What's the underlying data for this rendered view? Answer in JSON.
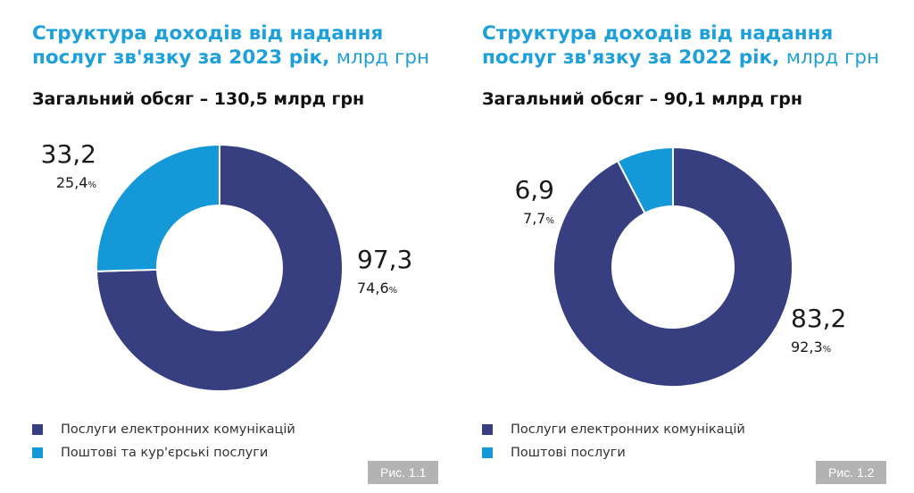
{
  "colors": {
    "title": "#1fa0d8",
    "electronic": "#373f81",
    "postal": "#1598d8",
    "fig_bg": "#b3b3b3"
  },
  "panels": [
    {
      "title_main": "Структура доходів від надання послуг зв'язку за 2023 рік,",
      "title_unit": "млрд грн",
      "total": "Загальний обсяг – 130,5 млрд грн",
      "legend": [
        {
          "label": "Послуги електронних комунікацій",
          "color": "#373f81"
        },
        {
          "label": "Поштові та кур'єрські послуги",
          "color": "#1598d8"
        }
      ],
      "fig": "Рис. 1.1"
    },
    {
      "title_main": "Структура доходів від надання послуг зв'язку за 2022 рік,",
      "title_unit": "млрд грн",
      "total": "Загальний обсяг – 90,1 млрд грн",
      "legend": [
        {
          "label": "Послуги електронних комунікацій",
          "color": "#373f81"
        },
        {
          "label": "Поштові послуги",
          "color": "#1598d8"
        }
      ],
      "fig": "Рис. 1.2"
    }
  ],
  "chart_data": [
    {
      "type": "pie",
      "title": "Структура доходів від надання послуг зв'язку за 2023 рік, млрд грн",
      "subtitle": "Загальний обсяг – 130,5 млрд грн",
      "slices": [
        {
          "name": "Послуги електронних комунікацій",
          "value": 97.3,
          "value_label": "97,3",
          "percent": 74.6,
          "percent_label": "74,6",
          "color": "#373f81"
        },
        {
          "name": "Поштові та кур'єрські послуги",
          "value": 33.2,
          "value_label": "33,2",
          "percent": 25.4,
          "percent_label": "25,4",
          "color": "#1598d8"
        }
      ],
      "legend_position": "bottom"
    },
    {
      "type": "pie",
      "title": "Структура доходів від надання послуг зв'язку за 2022 рік, млрд грн",
      "subtitle": "Загальний обсяг – 90,1 млрд грн",
      "slices": [
        {
          "name": "Послуги електронних комунікацій",
          "value": 83.2,
          "value_label": "83,2",
          "percent": 92.3,
          "percent_label": "92,3",
          "color": "#373f81"
        },
        {
          "name": "Поштові послуги",
          "value": 6.9,
          "value_label": "6,9",
          "percent": 7.7,
          "percent_label": "7,7",
          "color": "#1598d8"
        }
      ],
      "legend_position": "bottom"
    }
  ]
}
